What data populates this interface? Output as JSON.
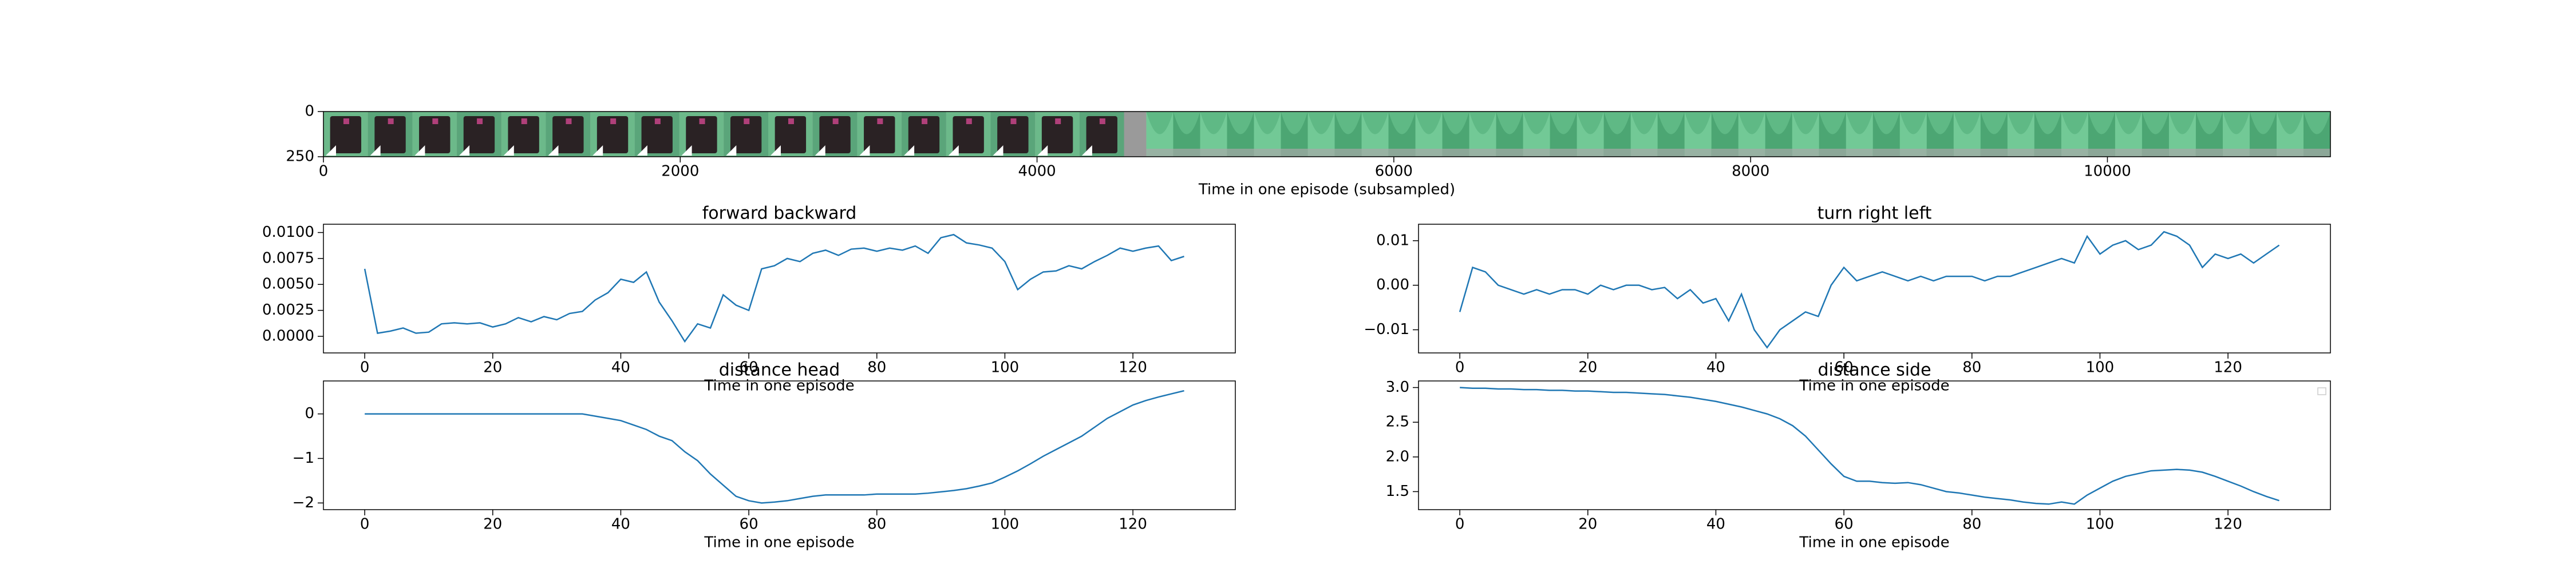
{
  "chart_data": [
    {
      "type": "image",
      "xlabel": "Time in one episode (subsampled)",
      "xlim": [
        0,
        11250
      ],
      "ylim": [
        250,
        0
      ],
      "xticks": [
        0,
        2000,
        4000,
        6000,
        8000,
        10000
      ],
      "yticks": [
        0,
        250
      ]
    },
    {
      "type": "line",
      "title": "forward backward",
      "xlabel": "Time in one episode",
      "color": "#1f77b4",
      "x": [
        0,
        2,
        4,
        6,
        8,
        10,
        12,
        14,
        16,
        18,
        20,
        22,
        24,
        26,
        28,
        30,
        32,
        34,
        36,
        38,
        40,
        42,
        44,
        46,
        48,
        50,
        52,
        54,
        56,
        58,
        60,
        62,
        64,
        66,
        68,
        70,
        72,
        74,
        76,
        78,
        80,
        82,
        84,
        86,
        88,
        90,
        92,
        94,
        96,
        98,
        100,
        102,
        104,
        106,
        108,
        110,
        112,
        114,
        116,
        118,
        120,
        122,
        124,
        126,
        128
      ],
      "values": [
        0.0065,
        0.0003,
        0.0005,
        0.0008,
        0.0003,
        0.0004,
        0.0012,
        0.0013,
        0.0012,
        0.0013,
        0.0009,
        0.0012,
        0.0018,
        0.0014,
        0.0019,
        0.0016,
        0.0022,
        0.0024,
        0.0035,
        0.0042,
        0.0055,
        0.0052,
        0.0062,
        0.0033,
        0.0015,
        -0.0005,
        0.0012,
        0.0008,
        0.004,
        0.003,
        0.0025,
        0.0065,
        0.0068,
        0.0075,
        0.0072,
        0.008,
        0.0083,
        0.0078,
        0.0084,
        0.0085,
        0.0082,
        0.0085,
        0.0083,
        0.0087,
        0.008,
        0.0095,
        0.0098,
        0.009,
        0.0088,
        0.0085,
        0.0072,
        0.0045,
        0.0055,
        0.0062,
        0.0063,
        0.0068,
        0.0065,
        0.0072,
        0.0078,
        0.0085,
        0.0082,
        0.0085,
        0.0087,
        0.0073,
        0.0077
      ],
      "xlim": [
        -6.45,
        136
      ],
      "xticks": [
        0,
        20,
        40,
        60,
        80,
        100,
        120
      ],
      "ylim": [
        -0.0016,
        0.0108
      ],
      "yticks": [
        {
          "value": 0,
          "label": "0.0000"
        },
        {
          "value": 0.0025,
          "label": "0.0025"
        },
        {
          "value": 0.005,
          "label": "0.0050"
        },
        {
          "value": 0.0075,
          "label": "0.0075"
        },
        {
          "value": 0.01,
          "label": "0.0100"
        }
      ]
    },
    {
      "type": "line",
      "title": "turn right left",
      "xlabel": "Time in one episode",
      "color": "#1f77b4",
      "x": [
        0,
        2,
        4,
        6,
        8,
        10,
        12,
        14,
        16,
        18,
        20,
        22,
        24,
        26,
        28,
        30,
        32,
        34,
        36,
        38,
        40,
        42,
        44,
        46,
        48,
        50,
        52,
        54,
        56,
        58,
        60,
        62,
        64,
        66,
        68,
        70,
        72,
        74,
        76,
        78,
        80,
        82,
        84,
        86,
        88,
        90,
        92,
        94,
        96,
        98,
        100,
        102,
        104,
        106,
        108,
        110,
        112,
        114,
        116,
        118,
        120,
        122,
        124,
        126,
        128
      ],
      "values": [
        -0.006,
        0.004,
        0.003,
        0.0,
        -0.001,
        -0.002,
        -0.001,
        -0.002,
        -0.001,
        -0.001,
        -0.002,
        0.0,
        -0.001,
        0.0,
        0.0,
        -0.001,
        -0.0005,
        -0.003,
        -0.001,
        -0.004,
        -0.003,
        -0.008,
        -0.002,
        -0.01,
        -0.014,
        -0.01,
        -0.008,
        -0.006,
        -0.007,
        0.0,
        0.004,
        0.001,
        0.002,
        0.003,
        0.002,
        0.001,
        0.002,
        0.001,
        0.002,
        0.002,
        0.002,
        0.001,
        0.002,
        0.002,
        0.003,
        0.004,
        0.005,
        0.006,
        0.005,
        0.011,
        0.007,
        0.009,
        0.01,
        0.008,
        0.009,
        0.012,
        0.011,
        0.009,
        0.004,
        0.007,
        0.006,
        0.007,
        0.005,
        0.007,
        0.009
      ],
      "xlim": [
        -6.45,
        136
      ],
      "xticks": [
        0,
        20,
        40,
        60,
        80,
        100,
        120
      ],
      "ylim": [
        -0.0152,
        0.0137
      ],
      "yticks": [
        {
          "value": -0.01,
          "label": "−0.01"
        },
        {
          "value": 0,
          "label": "0.00"
        },
        0.01
      ]
    },
    {
      "type": "line",
      "title": "distance head",
      "xlabel": "Time in one episode",
      "color": "#1f77b4",
      "x": [
        0,
        2,
        4,
        6,
        8,
        10,
        12,
        14,
        16,
        18,
        20,
        22,
        24,
        26,
        28,
        30,
        32,
        34,
        36,
        38,
        40,
        42,
        44,
        46,
        48,
        50,
        52,
        54,
        56,
        58,
        60,
        62,
        64,
        66,
        68,
        70,
        72,
        74,
        76,
        78,
        80,
        82,
        84,
        86,
        88,
        90,
        92,
        94,
        96,
        98,
        100,
        102,
        104,
        106,
        108,
        110,
        112,
        114,
        116,
        118,
        120,
        122,
        124,
        126,
        128
      ],
      "values": [
        0,
        0,
        0,
        0,
        0,
        0,
        0,
        0,
        0,
        0,
        0,
        0,
        0,
        0,
        0,
        0,
        0,
        0,
        -0.05,
        -0.1,
        -0.15,
        -0.25,
        -0.35,
        -0.5,
        -0.6,
        -0.85,
        -1.05,
        -1.35,
        -1.6,
        -1.85,
        -1.95,
        -2.0,
        -1.98,
        -1.95,
        -1.9,
        -1.85,
        -1.82,
        -1.82,
        -1.82,
        -1.82,
        -1.8,
        -1.8,
        -1.8,
        -1.8,
        -1.78,
        -1.75,
        -1.72,
        -1.68,
        -1.62,
        -1.55,
        -1.42,
        -1.28,
        -1.12,
        -0.95,
        -0.8,
        -0.65,
        -0.5,
        -0.3,
        -0.1,
        0.05,
        0.2,
        0.3,
        0.38,
        0.45,
        0.52
      ],
      "xlim": [
        -6.45,
        136
      ],
      "xticks": [
        0,
        20,
        40,
        60,
        80,
        100,
        120
      ],
      "ylim": [
        -2.15,
        0.74
      ],
      "yticks": [
        {
          "value": -2,
          "label": "−2"
        },
        {
          "value": -1,
          "label": "−1"
        },
        0
      ]
    },
    {
      "type": "line",
      "title": "distance side",
      "xlabel": "Time in one episode",
      "color": "#1f77b4",
      "x": [
        0,
        2,
        4,
        6,
        8,
        10,
        12,
        14,
        16,
        18,
        20,
        22,
        24,
        26,
        28,
        30,
        32,
        34,
        36,
        38,
        40,
        42,
        44,
        46,
        48,
        50,
        52,
        54,
        56,
        58,
        60,
        62,
        64,
        66,
        68,
        70,
        72,
        74,
        76,
        78,
        80,
        82,
        84,
        86,
        88,
        90,
        92,
        94,
        96,
        98,
        100,
        102,
        104,
        106,
        108,
        110,
        112,
        114,
        116,
        118,
        120,
        122,
        124,
        126,
        128
      ],
      "values": [
        3.0,
        2.99,
        2.99,
        2.98,
        2.98,
        2.97,
        2.97,
        2.96,
        2.96,
        2.95,
        2.95,
        2.94,
        2.93,
        2.93,
        2.92,
        2.91,
        2.9,
        2.88,
        2.86,
        2.83,
        2.8,
        2.76,
        2.72,
        2.67,
        2.62,
        2.55,
        2.45,
        2.3,
        2.1,
        1.9,
        1.72,
        1.65,
        1.65,
        1.63,
        1.62,
        1.63,
        1.6,
        1.55,
        1.5,
        1.48,
        1.45,
        1.42,
        1.4,
        1.38,
        1.35,
        1.33,
        1.32,
        1.35,
        1.32,
        1.45,
        1.55,
        1.65,
        1.72,
        1.76,
        1.8,
        1.81,
        1.82,
        1.81,
        1.78,
        1.72,
        1.65,
        1.58,
        1.5,
        1.43,
        1.37
      ],
      "xlim": [
        -6.45,
        136
      ],
      "xticks": [
        0,
        20,
        40,
        60,
        80,
        100,
        120
      ],
      "ylim": [
        1.24,
        3.095
      ],
      "yticks": [
        1.5,
        {
          "value": 2,
          "label": "2.0"
        },
        2.5,
        {
          "value": 3,
          "label": "3.0"
        }
      ]
    }
  ]
}
